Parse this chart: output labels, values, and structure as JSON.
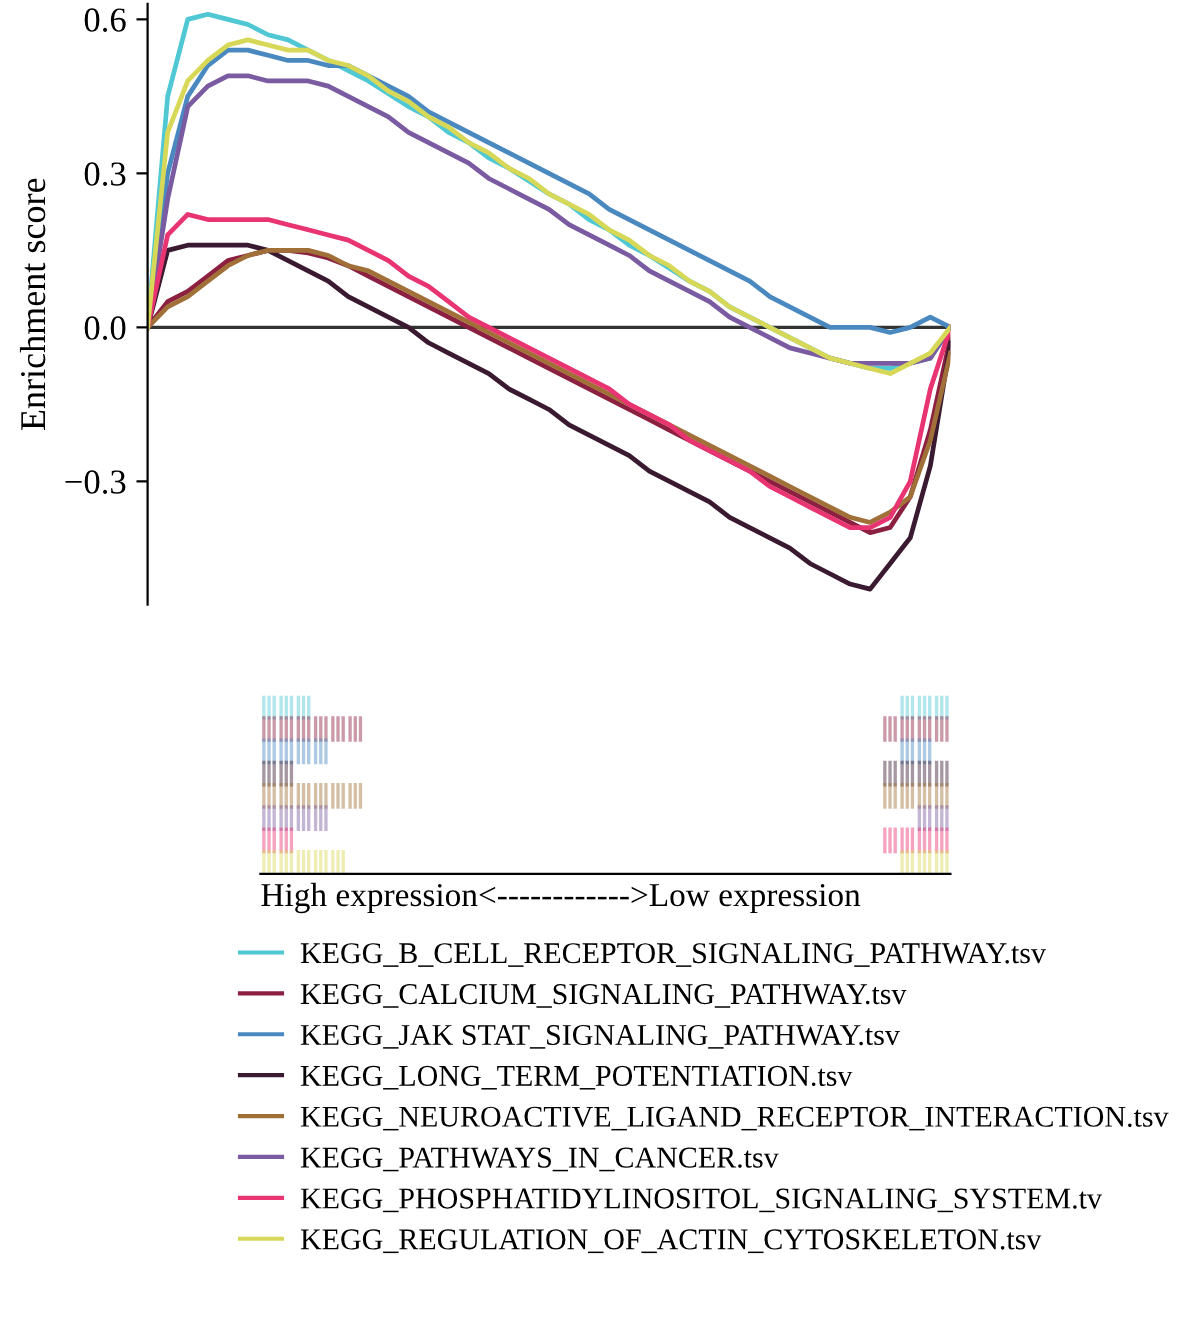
{
  "chart_data": {
    "type": "line",
    "ylabel": "Enrichment score",
    "annotations": [
      "High expression<------------>Low expression"
    ],
    "categories": [
      null,
      null,
      null,
      null,
      null,
      null,
      null,
      null,
      null,
      null,
      null,
      null,
      null,
      null,
      null,
      null,
      null,
      null,
      null,
      null,
      null,
      null,
      null,
      null,
      null,
      null,
      null,
      null,
      null,
      null,
      null,
      null,
      null,
      null,
      null,
      null,
      null,
      null,
      null,
      null,
      null
    ],
    "ylim": [
      -0.54,
      0.63
    ],
    "yticks": [
      {
        "value": 0.6,
        "label": "0.6"
      },
      {
        "value": 0.3,
        "label": "0.3"
      },
      {
        "value": 0.0,
        "label": "0.0"
      },
      {
        "value": -0.3,
        "label": "−0.3"
      }
    ],
    "ref_lines": [
      {
        "axis": "y",
        "value": 0.0,
        "color": "#333333"
      }
    ],
    "grid": false,
    "legend": "bottom",
    "marker": "none",
    "line_style": "solid",
    "tick_labels": "y",
    "series": [
      {
        "name": "KEGG_B_CELL_RECEPTOR_SIGNALING_PATHWAY.tsv",
        "color": "#4fc8d4",
        "values": [
          0,
          0.45,
          0.6,
          0.61,
          0.6,
          0.59,
          0.57,
          0.56,
          0.54,
          0.52,
          0.5,
          0.48,
          0.455,
          0.43,
          0.41,
          0.38,
          0.36,
          0.33,
          0.31,
          0.285,
          0.26,
          0.24,
          0.21,
          0.19,
          0.16,
          0.14,
          0.115,
          0.09,
          0.07,
          0.04,
          0.02,
          0.0,
          -0.02,
          -0.04,
          -0.06,
          -0.07,
          -0.08,
          -0.08,
          -0.07,
          -0.06,
          0
        ]
      },
      {
        "name": "KEGG_CALCIUM_SIGNALING_PATHWAY.tsv",
        "color": "#8b2040",
        "values": [
          0,
          0.05,
          0.07,
          0.1,
          0.13,
          0.14,
          0.15,
          0.15,
          0.145,
          0.135,
          0.12,
          0.1,
          0.08,
          0.06,
          0.04,
          0.02,
          0.0,
          -0.02,
          -0.04,
          -0.06,
          -0.08,
          -0.1,
          -0.12,
          -0.14,
          -0.16,
          -0.18,
          -0.2,
          -0.22,
          -0.24,
          -0.26,
          -0.28,
          -0.3,
          -0.32,
          -0.34,
          -0.36,
          -0.38,
          -0.4,
          -0.39,
          -0.33,
          -0.2,
          -0.02
        ]
      },
      {
        "name": "KEGG_JAK STAT_SIGNALING_PATHWAY.tsv",
        "color": "#4a88c0",
        "values": [
          0,
          0.3,
          0.45,
          0.51,
          0.54,
          0.54,
          0.53,
          0.52,
          0.52,
          0.51,
          0.51,
          0.49,
          0.47,
          0.45,
          0.42,
          0.4,
          0.38,
          0.36,
          0.34,
          0.32,
          0.3,
          0.28,
          0.26,
          0.23,
          0.21,
          0.19,
          0.17,
          0.15,
          0.13,
          0.11,
          0.09,
          0.06,
          0.04,
          0.02,
          0.0,
          0.0,
          0.0,
          -0.01,
          0.0,
          0.02,
          0
        ]
      },
      {
        "name": "KEGG_LONG_TERM_POTENTIATION.tsv",
        "color": "#3a1a30",
        "values": [
          0,
          0.15,
          0.16,
          0.16,
          0.16,
          0.16,
          0.15,
          0.13,
          0.11,
          0.09,
          0.06,
          0.04,
          0.02,
          0.0,
          -0.03,
          -0.05,
          -0.07,
          -0.09,
          -0.12,
          -0.14,
          -0.16,
          -0.19,
          -0.21,
          -0.23,
          -0.25,
          -0.28,
          -0.3,
          -0.32,
          -0.34,
          -0.37,
          -0.39,
          -0.41,
          -0.43,
          -0.46,
          -0.48,
          -0.5,
          -0.51,
          -0.46,
          -0.41,
          -0.27,
          -0.03
        ]
      },
      {
        "name": "KEGG_NEUROACTIVE_LIGAND_RECEPTOR_INTERACTION.tsv",
        "color": "#a07038",
        "values": [
          0,
          0.04,
          0.06,
          0.09,
          0.12,
          0.14,
          0.15,
          0.15,
          0.15,
          0.14,
          0.12,
          0.11,
          0.09,
          0.07,
          0.05,
          0.03,
          0.01,
          -0.01,
          -0.03,
          -0.05,
          -0.07,
          -0.09,
          -0.11,
          -0.13,
          -0.15,
          -0.17,
          -0.19,
          -0.21,
          -0.23,
          -0.25,
          -0.27,
          -0.29,
          -0.31,
          -0.33,
          -0.35,
          -0.37,
          -0.38,
          -0.36,
          -0.33,
          -0.22,
          -0.05
        ]
      },
      {
        "name": "KEGG_PATHWAYS_IN_CANCER.tsv",
        "color": "#7a5aa0",
        "values": [
          0,
          0.25,
          0.43,
          0.47,
          0.49,
          0.49,
          0.48,
          0.48,
          0.48,
          0.47,
          0.45,
          0.43,
          0.41,
          0.38,
          0.36,
          0.34,
          0.32,
          0.29,
          0.27,
          0.25,
          0.23,
          0.2,
          0.18,
          0.16,
          0.14,
          0.11,
          0.09,
          0.07,
          0.05,
          0.02,
          0.0,
          -0.02,
          -0.04,
          -0.05,
          -0.06,
          -0.07,
          -0.07,
          -0.07,
          -0.07,
          -0.06,
          0
        ]
      },
      {
        "name": "KEGG_PHOSPHATIDYLINOSITOL_SIGNALING_SYSTEM.tv",
        "color": "#e83470",
        "values": [
          0,
          0.18,
          0.22,
          0.21,
          0.21,
          0.21,
          0.21,
          0.2,
          0.19,
          0.18,
          0.17,
          0.15,
          0.13,
          0.1,
          0.08,
          0.05,
          0.02,
          0.0,
          -0.02,
          -0.04,
          -0.06,
          -0.08,
          -0.1,
          -0.12,
          -0.15,
          -0.17,
          -0.19,
          -0.22,
          -0.24,
          -0.26,
          -0.28,
          -0.31,
          -0.33,
          -0.35,
          -0.37,
          -0.39,
          -0.39,
          -0.37,
          -0.3,
          -0.12,
          0
        ]
      },
      {
        "name": "KEGG_REGULATION_OF_ACTIN_CYTOSKELETON.tsv",
        "color": "#d8d858",
        "values": [
          0,
          0.38,
          0.48,
          0.52,
          0.55,
          0.56,
          0.55,
          0.54,
          0.54,
          0.52,
          0.51,
          0.49,
          0.46,
          0.44,
          0.41,
          0.39,
          0.36,
          0.34,
          0.31,
          0.29,
          0.26,
          0.24,
          0.22,
          0.19,
          0.17,
          0.14,
          0.12,
          0.09,
          0.07,
          0.04,
          0.02,
          0.0,
          -0.02,
          -0.04,
          -0.06,
          -0.07,
          -0.08,
          -0.09,
          -0.07,
          -0.05,
          0
        ]
      }
    ]
  }
}
